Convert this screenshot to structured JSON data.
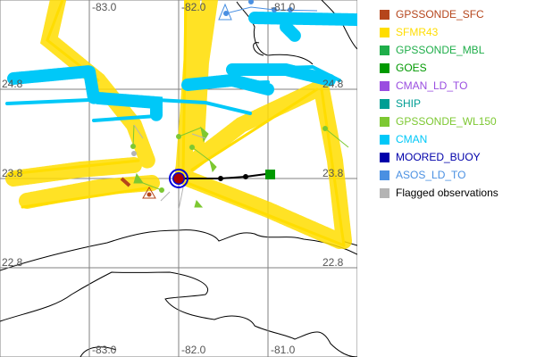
{
  "map": {
    "lon_labels": [
      "-83.0",
      "-82.0",
      "-81.0"
    ],
    "lat_labels": [
      "24.8",
      "23.8",
      "22.8"
    ],
    "grid_color": "#808080"
  },
  "legend": {
    "items": [
      {
        "label": "GPSSONDE_SFC",
        "color": "#b5451b"
      },
      {
        "label": "SFMR43",
        "color": "#ffdd00"
      },
      {
        "label": "GPSSONDE_MBL",
        "color": "#1fae4a"
      },
      {
        "label": "GOES",
        "color": "#009900"
      },
      {
        "label": "CMAN_LD_TO",
        "color": "#9a4ee0"
      },
      {
        "label": "SHIP",
        "color": "#009e94"
      },
      {
        "label": "GPSSONDE_WL150",
        "color": "#7dc832"
      },
      {
        "label": "CMAN",
        "color": "#00c8f8"
      },
      {
        "label": "MOORED_BUOY",
        "color": "#0000aa"
      },
      {
        "label": "ASOS_LD_TO",
        "color": "#4a90e2"
      },
      {
        "label": "Flagged observations",
        "color": "#b4b4b4",
        "text_color": "#000000"
      }
    ]
  }
}
